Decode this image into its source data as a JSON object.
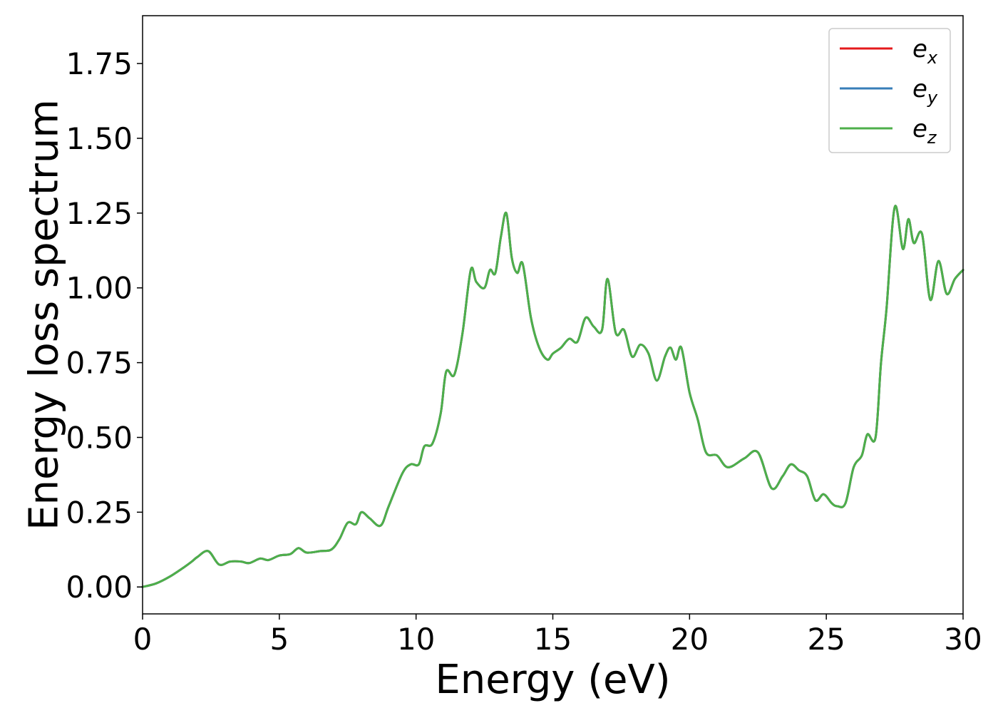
{
  "chart_data": {
    "type": "line",
    "title": "",
    "xlabel": "Energy (eV)",
    "ylabel": "Energy loss spectrum",
    "xlim": [
      0,
      30
    ],
    "ylim": [
      -0.09,
      1.91
    ],
    "xticks": [
      0,
      5,
      10,
      15,
      20,
      25,
      30
    ],
    "xtick_labels": [
      "0",
      "5",
      "10",
      "15",
      "20",
      "25",
      "30"
    ],
    "yticks": [
      0.0,
      0.25,
      0.5,
      0.75,
      1.0,
      1.25,
      1.5,
      1.75
    ],
    "ytick_labels": [
      "0.00",
      "0.25",
      "0.50",
      "0.75",
      "1.00",
      "1.25",
      "1.50",
      "1.75"
    ],
    "grid": false,
    "legend_position": "top-right",
    "x": [
      0.0,
      0.5,
      1.0,
      1.5,
      1.8,
      2.0,
      2.4,
      2.8,
      3.2,
      3.6,
      3.9,
      4.3,
      4.6,
      5.0,
      5.4,
      5.7,
      6.0,
      6.5,
      6.9,
      7.2,
      7.5,
      7.8,
      8.0,
      8.3,
      8.7,
      9.0,
      9.5,
      9.8,
      10.1,
      10.3,
      10.6,
      10.9,
      11.1,
      11.4,
      11.7,
      12.0,
      12.2,
      12.5,
      12.7,
      12.9,
      13.1,
      13.3,
      13.5,
      13.7,
      13.9,
      14.2,
      14.5,
      14.8,
      15.0,
      15.3,
      15.6,
      15.9,
      16.2,
      16.5,
      16.8,
      17.0,
      17.3,
      17.6,
      17.9,
      18.2,
      18.5,
      18.8,
      19.1,
      19.3,
      19.5,
      19.7,
      20.0,
      20.3,
      20.6,
      21.0,
      21.4,
      22.0,
      22.5,
      23.0,
      23.4,
      23.7,
      24.0,
      24.3,
      24.6,
      24.9,
      25.2,
      25.4,
      25.7,
      26.0,
      26.3,
      26.5,
      26.8,
      27.0,
      27.2,
      27.5,
      27.8,
      28.0,
      28.2,
      28.5,
      28.8,
      29.1,
      29.4,
      29.7,
      30.0
    ],
    "series": [
      {
        "name": "e_x",
        "label_base": "e",
        "label_sub": "x",
        "color": "#e41a1c",
        "values": [
          0.0,
          0.012,
          0.035,
          0.065,
          0.085,
          0.1,
          0.12,
          0.075,
          0.085,
          0.085,
          0.08,
          0.095,
          0.09,
          0.105,
          0.11,
          0.13,
          0.115,
          0.12,
          0.125,
          0.16,
          0.215,
          0.21,
          0.25,
          0.23,
          0.205,
          0.27,
          0.38,
          0.41,
          0.41,
          0.47,
          0.48,
          0.58,
          0.72,
          0.71,
          0.85,
          1.06,
          1.02,
          1.0,
          1.06,
          1.05,
          1.17,
          1.25,
          1.1,
          1.05,
          1.08,
          0.9,
          0.8,
          0.76,
          0.78,
          0.8,
          0.83,
          0.82,
          0.9,
          0.87,
          0.86,
          1.03,
          0.85,
          0.86,
          0.77,
          0.81,
          0.78,
          0.69,
          0.77,
          0.8,
          0.76,
          0.8,
          0.65,
          0.56,
          0.45,
          0.44,
          0.4,
          0.43,
          0.45,
          0.33,
          0.37,
          0.41,
          0.39,
          0.37,
          0.29,
          0.31,
          0.28,
          0.27,
          0.28,
          0.4,
          0.44,
          0.51,
          0.5,
          0.75,
          0.93,
          1.27,
          1.13,
          1.23,
          1.15,
          1.18,
          0.96,
          1.09,
          0.98,
          1.03,
          1.06
        ]
      },
      {
        "name": "e_y",
        "label_base": "e",
        "label_sub": "y",
        "color": "#377eb8",
        "values": [
          0.0,
          0.012,
          0.035,
          0.065,
          0.085,
          0.1,
          0.12,
          0.075,
          0.085,
          0.085,
          0.08,
          0.095,
          0.09,
          0.105,
          0.11,
          0.13,
          0.115,
          0.12,
          0.125,
          0.16,
          0.215,
          0.21,
          0.25,
          0.23,
          0.205,
          0.27,
          0.38,
          0.41,
          0.41,
          0.47,
          0.48,
          0.58,
          0.72,
          0.71,
          0.85,
          1.06,
          1.02,
          1.0,
          1.06,
          1.05,
          1.17,
          1.25,
          1.1,
          1.05,
          1.08,
          0.9,
          0.8,
          0.76,
          0.78,
          0.8,
          0.83,
          0.82,
          0.9,
          0.87,
          0.86,
          1.03,
          0.85,
          0.86,
          0.77,
          0.81,
          0.78,
          0.69,
          0.77,
          0.8,
          0.76,
          0.8,
          0.65,
          0.56,
          0.45,
          0.44,
          0.4,
          0.43,
          0.45,
          0.33,
          0.37,
          0.41,
          0.39,
          0.37,
          0.29,
          0.31,
          0.28,
          0.27,
          0.28,
          0.4,
          0.44,
          0.51,
          0.5,
          0.75,
          0.93,
          1.27,
          1.13,
          1.23,
          1.15,
          1.18,
          0.96,
          1.09,
          0.98,
          1.03,
          1.06
        ]
      },
      {
        "name": "e_z",
        "label_base": "e",
        "label_sub": "z",
        "color": "#4daf4a",
        "values": [
          0.0,
          0.012,
          0.035,
          0.065,
          0.085,
          0.1,
          0.12,
          0.075,
          0.085,
          0.085,
          0.08,
          0.095,
          0.09,
          0.105,
          0.11,
          0.13,
          0.115,
          0.12,
          0.125,
          0.16,
          0.215,
          0.21,
          0.25,
          0.23,
          0.205,
          0.27,
          0.38,
          0.41,
          0.41,
          0.47,
          0.48,
          0.58,
          0.72,
          0.71,
          0.85,
          1.06,
          1.02,
          1.0,
          1.06,
          1.05,
          1.17,
          1.25,
          1.1,
          1.05,
          1.08,
          0.9,
          0.8,
          0.76,
          0.78,
          0.8,
          0.83,
          0.82,
          0.9,
          0.87,
          0.86,
          1.03,
          0.85,
          0.86,
          0.77,
          0.81,
          0.78,
          0.69,
          0.77,
          0.8,
          0.76,
          0.8,
          0.65,
          0.56,
          0.45,
          0.44,
          0.4,
          0.43,
          0.45,
          0.33,
          0.37,
          0.41,
          0.39,
          0.37,
          0.29,
          0.31,
          0.28,
          0.27,
          0.28,
          0.4,
          0.44,
          0.51,
          0.5,
          0.75,
          0.93,
          1.27,
          1.13,
          1.23,
          1.15,
          1.18,
          0.96,
          1.09,
          0.98,
          1.03,
          1.06
        ]
      }
    ]
  }
}
